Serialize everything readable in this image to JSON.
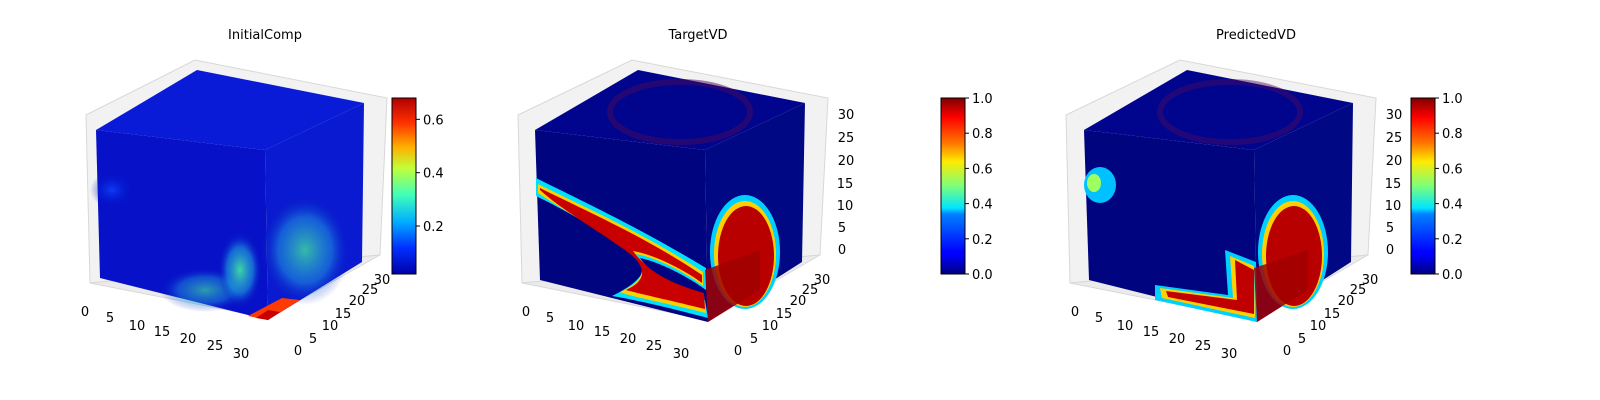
{
  "chart_data": [
    {
      "type": "heatmap",
      "title": "InitialComp",
      "x_ticks": [
        "0",
        "5",
        "10",
        "15",
        "20",
        "25",
        "30"
      ],
      "y_ticks": [
        "0",
        "5",
        "10",
        "15",
        "20",
        "25",
        "30"
      ],
      "z_ticks": [
        "",
        "",
        "",
        "",
        "",
        "",
        ""
      ],
      "colorbar": {
        "range": [
          0.02,
          0.68
        ],
        "ticks": [
          "0.2",
          "0.4",
          "0.6"
        ],
        "tick_values": [
          0.2,
          0.4,
          0.6
        ],
        "colormap": "jet"
      }
    },
    {
      "type": "heatmap",
      "title": "TargetVD",
      "x_ticks": [
        "0",
        "5",
        "10",
        "15",
        "20",
        "25",
        "30"
      ],
      "y_ticks": [
        "0",
        "5",
        "10",
        "15",
        "20",
        "25",
        "30"
      ],
      "z_ticks": [
        "0",
        "5",
        "10",
        "15",
        "20",
        "25",
        "30"
      ],
      "colorbar": {
        "range": [
          0.0,
          1.0
        ],
        "ticks": [
          "0.0",
          "0.2",
          "0.4",
          "0.6",
          "0.8",
          "1.0"
        ],
        "tick_values": [
          0.0,
          0.2,
          0.4,
          0.6,
          0.8,
          1.0
        ],
        "colormap": "jet"
      }
    },
    {
      "type": "heatmap",
      "title": "PredictedVD",
      "x_ticks": [
        "0",
        "5",
        "10",
        "15",
        "20",
        "25",
        "30"
      ],
      "y_ticks": [
        "0",
        "5",
        "10",
        "15",
        "20",
        "25",
        "30"
      ],
      "z_ticks": [
        "0",
        "5",
        "10",
        "15",
        "20",
        "25",
        "30"
      ],
      "colorbar": {
        "range": [
          0.0,
          1.0
        ],
        "ticks": [
          "0.0",
          "0.2",
          "0.4",
          "0.6",
          "0.8",
          "1.0"
        ],
        "tick_values": [
          0.0,
          0.2,
          0.4,
          0.6,
          0.8,
          1.0
        ],
        "colormap": "jet"
      }
    }
  ],
  "colors": {
    "background_volume": "#00007f",
    "pane": "#f0f0f0",
    "grid": "#d0d0d0"
  }
}
